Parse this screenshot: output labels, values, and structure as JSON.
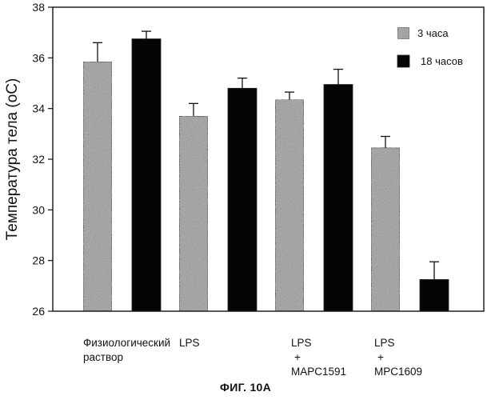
{
  "figure": {
    "caption": "ФИГ. 10А"
  },
  "chart_data": {
    "type": "bar",
    "categories": [
      [
        "Физиологический",
        "раствор"
      ],
      [
        "LPS"
      ],
      [
        "LPS",
        "+",
        "MAPC1591"
      ],
      [
        "LPS",
        "+",
        "MPC1609"
      ]
    ],
    "ylabel": "Температура тела (оС)",
    "ylim": [
      26,
      38
    ],
    "yticks": [
      26,
      28,
      30,
      32,
      34,
      36,
      38
    ],
    "grid": false,
    "legend_position": "top-right",
    "series": [
      {
        "name": "3 часа",
        "color": "#9b9b9b",
        "fill": "speckled-gray",
        "values": [
          35.85,
          33.7,
          34.35,
          32.45
        ],
        "errors": [
          0.75,
          0.5,
          0.3,
          0.45
        ]
      },
      {
        "name": "18 часов",
        "color": "#050505",
        "fill": "solid-black",
        "values": [
          36.75,
          34.8,
          34.95,
          27.25
        ],
        "errors": [
          0.3,
          0.4,
          0.6,
          0.7
        ]
      }
    ]
  }
}
